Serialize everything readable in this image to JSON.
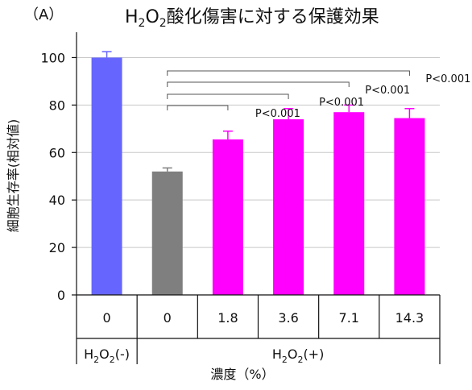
{
  "panel_label": "（A）",
  "title": {
    "main": "H",
    "sub1": "2",
    "mid": "O",
    "sub2": "2",
    "rest": "酸化傷害に対する保護効果"
  },
  "chart_data": {
    "type": "bar",
    "ylabel": "細胞生存率(相対値)",
    "ylim": [
      0,
      110
    ],
    "yticks": [
      0,
      20,
      40,
      60,
      80,
      100
    ],
    "grid": true,
    "categories": [
      "0",
      "0",
      "1.8",
      "3.6",
      "7.1",
      "14.3"
    ],
    "values": [
      100,
      52,
      65.5,
      74,
      77,
      74.5
    ],
    "errors": [
      2.5,
      1.5,
      3.5,
      4.5,
      3,
      4
    ],
    "colors": [
      "#6666ff",
      "#7f7f7f",
      "#ff00ff",
      "#ff00ff",
      "#ff00ff",
      "#ff00ff"
    ],
    "group_labels": [
      {
        "pre": "H",
        "sub": "2",
        "mid": "O",
        "sub2": "2",
        "post": "(-)"
      },
      {
        "pre": "H",
        "sub": "2",
        "mid": "O",
        "sub2": "2",
        "post": "(+)"
      }
    ],
    "xlabel": "濃度（%）",
    "annotations": [
      {
        "from": 1,
        "to": 2,
        "text": "P<0.001"
      },
      {
        "from": 1,
        "to": 3,
        "text": "P<0.001"
      },
      {
        "from": 1,
        "to": 4,
        "text": "P<0.001"
      },
      {
        "from": 1,
        "to": 5,
        "text": "P<0.001"
      }
    ]
  }
}
